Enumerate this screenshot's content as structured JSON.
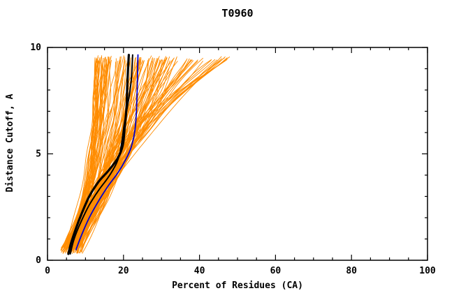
{
  "chart_data": {
    "type": "line",
    "title": "T0960",
    "xlabel": "Percent of Residues (CA)",
    "ylabel": "Distance Cutoff, A",
    "xlim": [
      0,
      100
    ],
    "ylim": [
      0,
      10
    ],
    "x_ticks": [
      0,
      20,
      40,
      60,
      80,
      100
    ],
    "x_minor_step": 5,
    "y_ticks": [
      0,
      5,
      10
    ],
    "y_minor_step": 1,
    "grid": false,
    "legend": "none",
    "background": "#ffffff",
    "frame_color": "#000000",
    "ensemble": {
      "name": "predicted-models",
      "color": "#ff8c00",
      "count": 120,
      "seed": 7,
      "line_width": 0.9,
      "x_bottom_range": [
        3.5,
        9
      ],
      "x_top_range": [
        13,
        50
      ],
      "x_top_skew": 2,
      "y_range": [
        0.3,
        9.65
      ]
    },
    "highlight_series": [
      {
        "name": "model-blue",
        "color": "#0000cd",
        "width": 1.8,
        "points": [
          [
            7.5,
            0.5
          ],
          [
            9,
            1.2
          ],
          [
            11,
            2.0
          ],
          [
            13.5,
            2.8
          ],
          [
            16,
            3.5
          ],
          [
            18.5,
            4.1
          ],
          [
            20.5,
            4.7
          ],
          [
            22,
            5.3
          ],
          [
            23,
            6.1
          ],
          [
            23.4,
            7.0
          ],
          [
            23.6,
            8.0
          ],
          [
            23.8,
            9.65
          ]
        ]
      },
      {
        "name": "model-black-2",
        "color": "#000000",
        "width": 2,
        "points": [
          [
            6,
            0.3
          ],
          [
            7,
            1.0
          ],
          [
            8.8,
            1.8
          ],
          [
            11,
            2.6
          ],
          [
            13.5,
            3.3
          ],
          [
            16,
            3.9
          ],
          [
            18,
            4.5
          ],
          [
            19,
            5.0
          ],
          [
            19.6,
            5.6
          ],
          [
            20.2,
            6.4
          ],
          [
            21.2,
            7.4
          ],
          [
            22,
            8.4
          ],
          [
            22.4,
            9.65
          ]
        ]
      },
      {
        "name": "model-black-1",
        "color": "#000000",
        "width": 3.2,
        "points": [
          [
            5.5,
            0.3
          ],
          [
            6.2,
            0.8
          ],
          [
            7.5,
            1.5
          ],
          [
            9,
            2.2
          ],
          [
            11,
            3.0
          ],
          [
            13.5,
            3.7
          ],
          [
            16,
            4.2
          ],
          [
            18.5,
            4.8
          ],
          [
            19.8,
            5.4
          ],
          [
            20.3,
            6.2
          ],
          [
            20.8,
            7.2
          ],
          [
            21,
            8.2
          ],
          [
            21.2,
            9.0
          ],
          [
            21.4,
            9.65
          ]
        ]
      }
    ]
  }
}
